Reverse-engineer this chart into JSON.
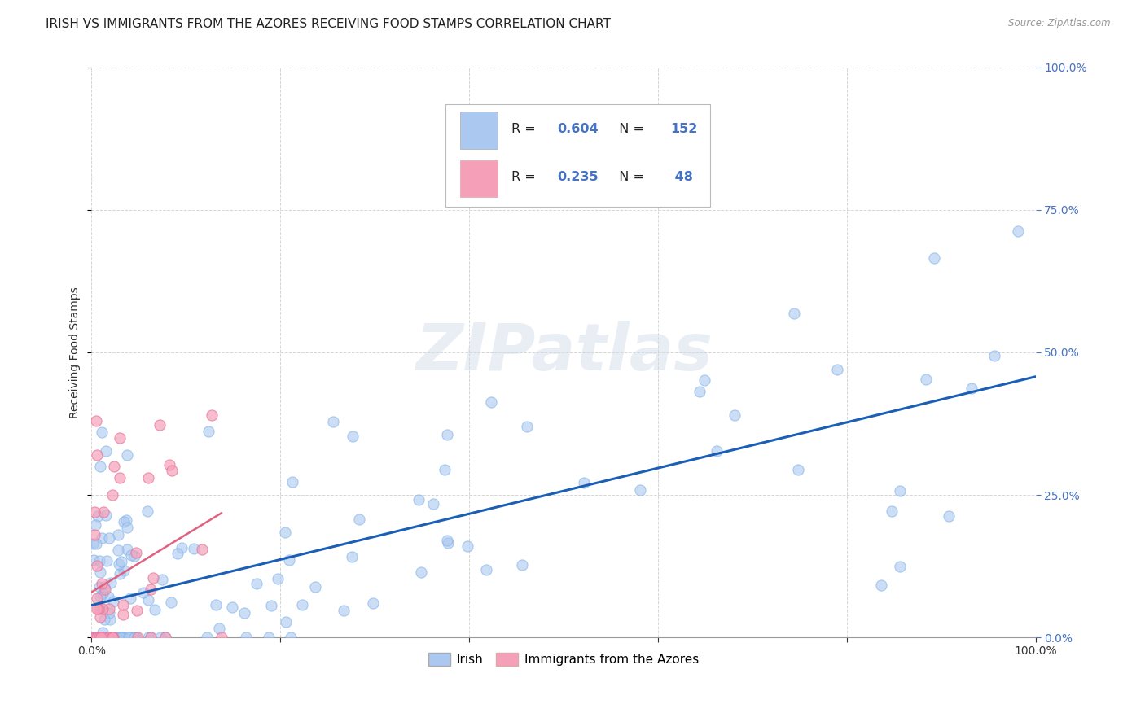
{
  "title": "IRISH VS IMMIGRANTS FROM THE AZORES RECEIVING FOOD STAMPS CORRELATION CHART",
  "source": "Source: ZipAtlas.com",
  "ylabel": "Receiving Food Stamps",
  "x_min": 0.0,
  "x_max": 1.0,
  "y_min": 0.0,
  "y_max": 1.0,
  "irish_R": 0.604,
  "irish_N": 152,
  "azores_R": 0.235,
  "azores_N": 48,
  "irish_color": "#aac8f0",
  "azores_color": "#f5a0b8",
  "irish_line_color": "#1a5fb5",
  "azores_line_color": "#e06080",
  "irish_line_style": "solid",
  "azores_line_style": "solid",
  "watermark": "ZIPatlas",
  "title_fontsize": 11,
  "axis_label_fontsize": 10,
  "tick_fontsize": 10,
  "legend_label_irish": "Irish",
  "legend_label_azores": "Immigrants from the Azores",
  "blue_text_color": "#4472c4",
  "right_tick_color": "#4472c4"
}
